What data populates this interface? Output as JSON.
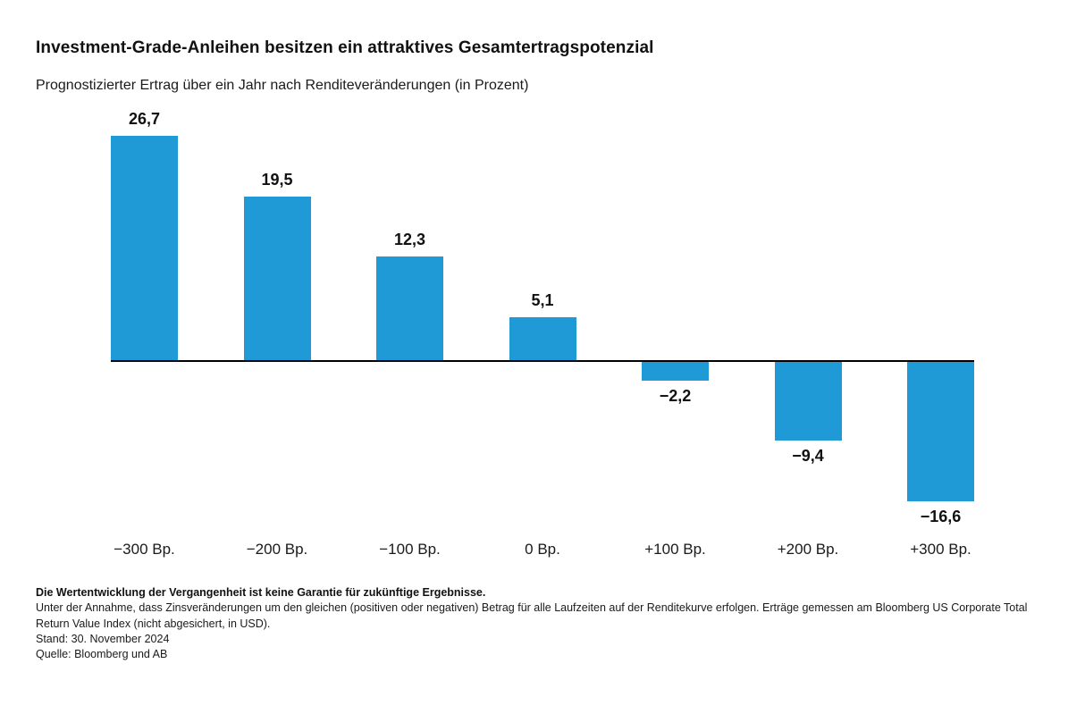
{
  "header": {
    "title": "Investment-Grade-Anleihen besitzen ein attraktives Gesamtertragspotenzial",
    "subtitle": "Prognostizierter Ertrag über ein Jahr nach Renditeveränderungen (in Prozent)"
  },
  "chart_data": {
    "type": "bar",
    "title": "Investment-Grade-Anleihen besitzen ein attraktives Gesamtertragspotenzial",
    "subtitle": "Prognostizierter Ertrag über ein Jahr nach Renditeveränderungen (in Prozent)",
    "categories": [
      "−300 Bp.",
      "−200 Bp.",
      "−100 Bp.",
      "0 Bp.",
      "+100 Bp.",
      "+200 Bp.",
      "+300 Bp."
    ],
    "values": [
      26.7,
      19.5,
      12.3,
      5.1,
      -2.2,
      -9.4,
      -16.6
    ],
    "value_labels": [
      "26,7",
      "19,5",
      "12,3",
      "5,1",
      "−2,2",
      "−9,4",
      "−16,6"
    ],
    "xlabel": "",
    "ylabel": "",
    "ylim": [
      -20,
      30
    ],
    "grid": false,
    "legend": false,
    "bar_color": "#1f9ad6",
    "axis_color": "#000000",
    "label_color": "#111111"
  },
  "footnotes": {
    "disclaimer": "Die Wertentwicklung der Vergangenheit ist keine Garantie für zukünftige Ergebnisse.",
    "note": "Unter der Annahme, dass Zinsveränderungen um den gleichen (positiven oder negativen) Betrag für alle Laufzeiten auf der Renditekurve erfolgen. Erträge gemessen am Bloomberg US Corporate Total Return Value Index (nicht abgesichert, in USD).",
    "as_of": "Stand: 30. November 2024",
    "source": "Quelle: Bloomberg und AB"
  }
}
